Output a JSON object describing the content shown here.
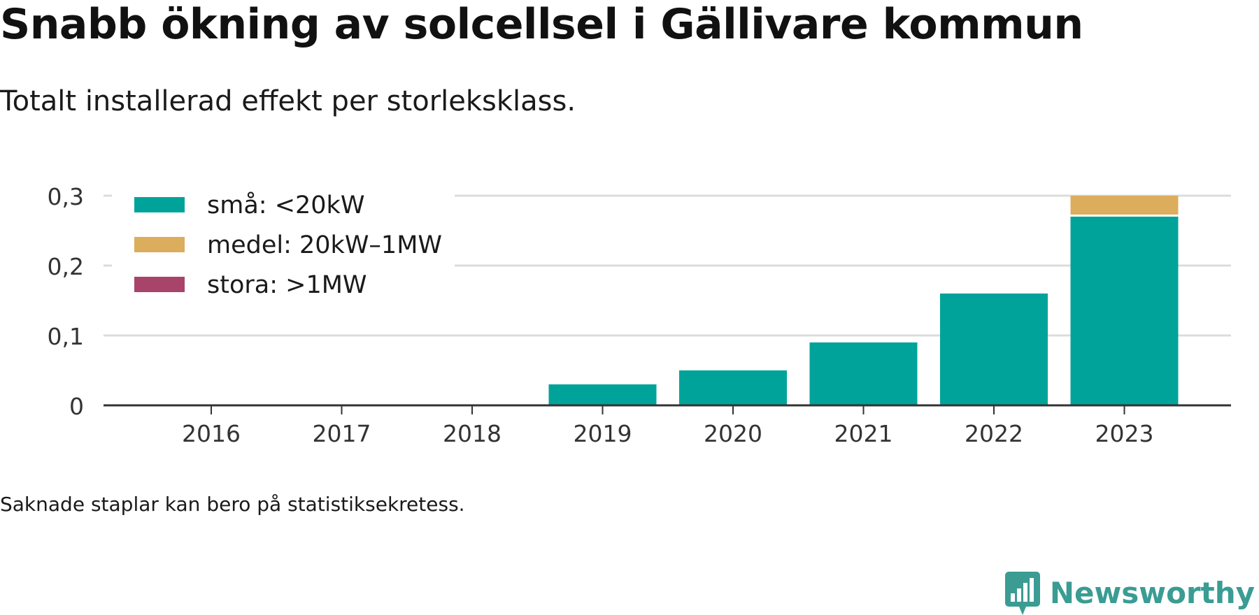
{
  "title": "Snabb ökning av solcellsel i Gällivare kommun",
  "subtitle": "Totalt installerad effekt per storleksklass.",
  "footnote": "Saknade staplar kan bero på statistiksekretess.",
  "brand": {
    "name": "Newsworthy",
    "icon": "newsworthy-logo-icon",
    "color": "#3a9c93"
  },
  "chart_data": {
    "type": "bar",
    "stacked": true,
    "categories": [
      "2016",
      "2017",
      "2018",
      "2019",
      "2020",
      "2021",
      "2022",
      "2023"
    ],
    "series": [
      {
        "name": "små: <20kW",
        "color": "#00a39a",
        "values": [
          0,
          0,
          0,
          0.03,
          0.05,
          0.09,
          0.16,
          0.27
        ]
      },
      {
        "name": "medel: 20kW–1MW",
        "color": "#dcad5c",
        "values": [
          0,
          0,
          0,
          0,
          0,
          0,
          0,
          0.03
        ]
      },
      {
        "name": "stora: >1MW",
        "color": "#a8436a",
        "values": [
          0,
          0,
          0,
          0,
          0,
          0,
          0,
          0
        ]
      }
    ],
    "yticks": [
      {
        "value": 0,
        "label": "0"
      },
      {
        "value": 0.1,
        "label": "0,1"
      },
      {
        "value": 0.2,
        "label": "0,2"
      },
      {
        "value": 0.3,
        "label": "0,3"
      }
    ],
    "ylim": [
      0,
      0.3
    ],
    "grid": true,
    "legend": "top-left"
  }
}
